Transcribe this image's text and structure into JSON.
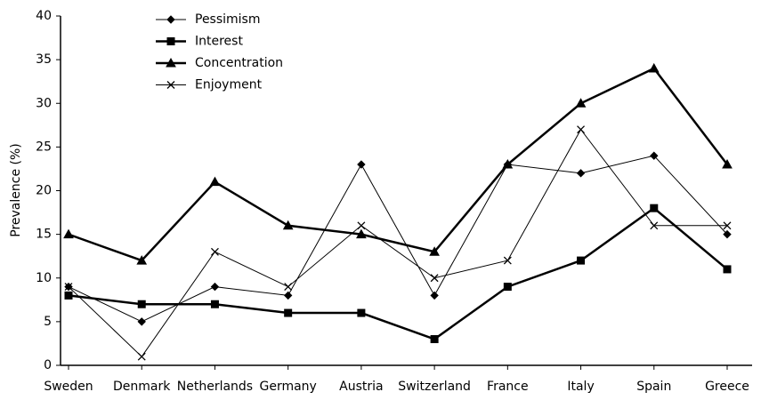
{
  "chart_data": {
    "type": "line",
    "y_label": "Prevalence (%)",
    "categories": [
      "Sweden",
      "Denmark",
      "Netherlands",
      "Germany",
      "Austria",
      "Switzerland",
      "France",
      "Italy",
      "Spain",
      "Greece"
    ],
    "series": [
      {
        "name": "Pessimism",
        "color": "#000000",
        "marker": "diamond",
        "line_width": 1,
        "values": [
          9,
          5,
          9,
          8,
          23,
          8,
          23,
          22,
          24,
          15
        ]
      },
      {
        "name": "Interest",
        "color": "#000000",
        "marker": "square",
        "line_width": 2.5,
        "values": [
          8,
          7,
          7,
          6,
          6,
          3,
          9,
          12,
          18,
          11
        ]
      },
      {
        "name": "Concentration",
        "color": "#000000",
        "marker": "triangle",
        "line_width": 2.5,
        "values": [
          15,
          12,
          21,
          16,
          15,
          13,
          23,
          30,
          34,
          23
        ]
      },
      {
        "name": "Enjoyment",
        "color": "#000000",
        "marker": "x",
        "line_width": 1,
        "values": [
          9,
          1,
          13,
          9,
          16,
          10,
          12,
          27,
          16,
          16
        ]
      }
    ],
    "ylim": [
      0,
      40
    ],
    "yticks": [
      0,
      5,
      10,
      15,
      20,
      25,
      30,
      35,
      40
    ],
    "grid": false,
    "legend": "top-left"
  }
}
